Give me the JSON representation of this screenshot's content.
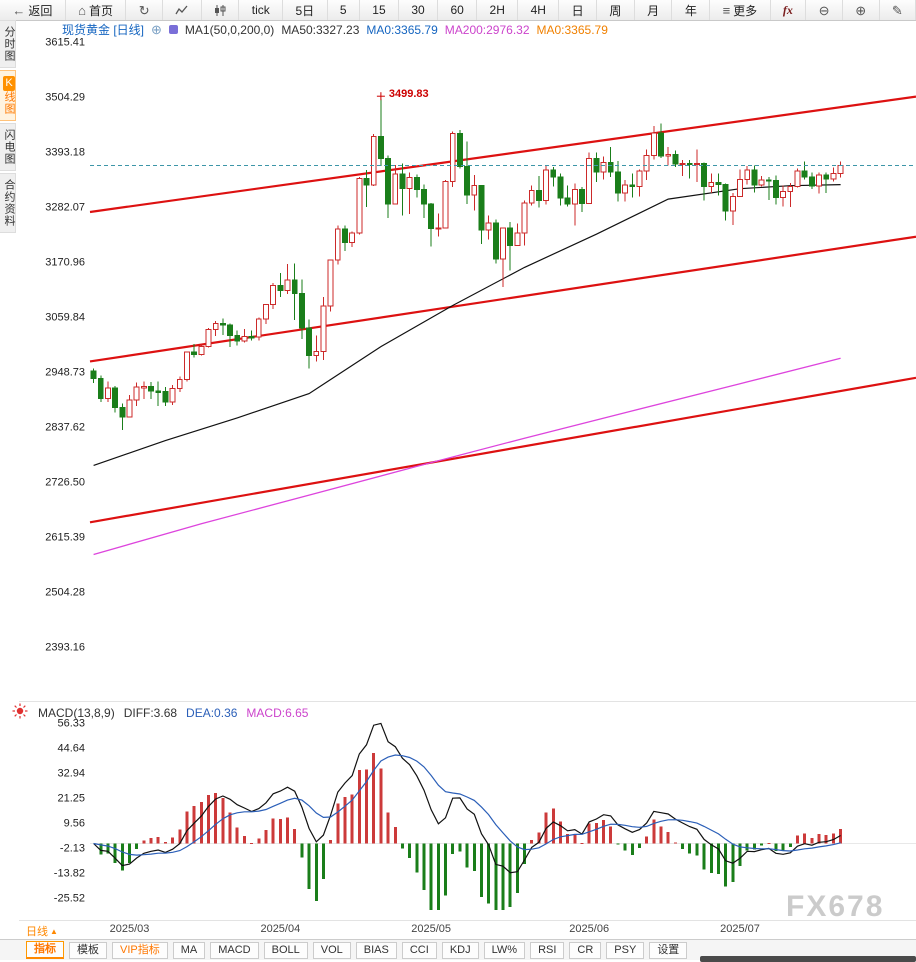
{
  "topbar": {
    "items": [
      {
        "name": "back",
        "icon": "back-arrow",
        "label": "返回"
      },
      {
        "name": "home",
        "icon": "home",
        "label": "首页"
      },
      {
        "name": "refresh",
        "icon": "refresh",
        "label": ""
      },
      {
        "name": "line-chart",
        "icon": "line-chart",
        "label": ""
      },
      {
        "name": "candle-chart",
        "icon": "candle-chart",
        "label": ""
      },
      {
        "name": "tick",
        "label": "tick"
      },
      {
        "name": "5d",
        "label": "5日"
      },
      {
        "name": "5",
        "label": "5"
      },
      {
        "name": "15",
        "label": "15"
      },
      {
        "name": "30",
        "label": "30"
      },
      {
        "name": "60",
        "label": "60"
      },
      {
        "name": "2h",
        "label": "2H"
      },
      {
        "name": "4h",
        "label": "4H"
      },
      {
        "name": "day",
        "label": "日"
      },
      {
        "name": "week",
        "label": "周"
      },
      {
        "name": "month",
        "label": "月"
      },
      {
        "name": "year",
        "label": "年"
      },
      {
        "name": "more",
        "icon": "menu",
        "label": "更多"
      },
      {
        "name": "fx",
        "label": "fx"
      },
      {
        "name": "zoom-out",
        "icon": "zoom-out",
        "label": ""
      },
      {
        "name": "zoom-in",
        "icon": "zoom-in",
        "label": ""
      },
      {
        "name": "draw",
        "icon": "pencil",
        "label": ""
      }
    ]
  },
  "sidebar": {
    "items": [
      {
        "label": "分时图",
        "selected": false
      },
      {
        "label": "K线图",
        "selected": true
      },
      {
        "label": "闪电图",
        "selected": false
      },
      {
        "label": "合约资料",
        "selected": false
      }
    ]
  },
  "chart_header": {
    "segments": [
      {
        "name": "symbol-period",
        "text": "现货黄金 [日线]",
        "color": "#1565c0"
      },
      {
        "name": "ma-params",
        "text": "MA1(50,0,200,0)",
        "color": "#333333"
      },
      {
        "name": "ma50-value",
        "text": "MA50:3327.23",
        "color": "#333333"
      },
      {
        "name": "ma0-value",
        "text": "MA0:3365.79",
        "color": "#1565c0"
      },
      {
        "name": "ma200-value",
        "text": "MA200:2976.32",
        "color": "#cc44cc"
      },
      {
        "name": "ma0-value-2",
        "text": "MA0:3365.79",
        "color": "#f08000"
      }
    ]
  },
  "macd_header": {
    "segments": [
      {
        "name": "macd-params",
        "text": "MACD(13,8,9)",
        "color": "#333333"
      },
      {
        "name": "diff-value",
        "text": "DIFF:3.68",
        "color": "#333333"
      },
      {
        "name": "dea-value",
        "text": "DEA:0.36",
        "color": "#2b5fb8"
      },
      {
        "name": "macd-value",
        "text": "MACD:6.65",
        "color": "#cc44cc"
      }
    ]
  },
  "bottombar": {
    "period_label": "日线",
    "tabs": [
      {
        "label": "指标",
        "style": "active"
      },
      {
        "label": "模板",
        "style": "plain"
      },
      {
        "label": "VIP指标",
        "style": "vip"
      },
      {
        "label": "MA",
        "style": "boxed"
      },
      {
        "label": "MACD",
        "style": "boxed"
      },
      {
        "label": "BOLL",
        "style": "boxed"
      },
      {
        "label": "VOL",
        "style": "boxed"
      },
      {
        "label": "BIAS",
        "style": "boxed"
      },
      {
        "label": "CCI",
        "style": "boxed"
      },
      {
        "label": "KDJ",
        "style": "boxed"
      },
      {
        "label": "LW%",
        "style": "boxed"
      },
      {
        "label": "RSI",
        "style": "boxed"
      },
      {
        "label": "CR",
        "style": "boxed"
      },
      {
        "label": "PSY",
        "style": "boxed"
      },
      {
        "label": "设置",
        "style": "boxed"
      }
    ]
  },
  "watermark": "FX678",
  "chart_data": {
    "type": "candlestick",
    "symbol": "现货黄金",
    "period": "日线",
    "main": {
      "y_ticks": [
        3615.41,
        3504.29,
        3393.18,
        3282.07,
        3170.96,
        3059.84,
        2948.73,
        2837.62,
        2726.5,
        2615.39,
        2504.28,
        2393.16
      ],
      "candles": [
        [
          2951,
          2956,
          2926,
          2936
        ],
        [
          2936,
          2942,
          2888,
          2895
        ],
        [
          2895,
          2930,
          2888,
          2916
        ],
        [
          2916,
          2920,
          2867,
          2877
        ],
        [
          2877,
          2885,
          2832,
          2858
        ],
        [
          2858,
          2902,
          2857,
          2892
        ],
        [
          2892,
          2927,
          2880,
          2918
        ],
        [
          2918,
          2929,
          2894,
          2919
        ],
        [
          2919,
          2928,
          2894,
          2910
        ],
        [
          2910,
          2930,
          2880,
          2909
        ],
        [
          2909,
          2918,
          2880,
          2888
        ],
        [
          2888,
          2922,
          2882,
          2915
        ],
        [
          2915,
          2940,
          2908,
          2934
        ],
        [
          2934,
          2990,
          2930,
          2989
        ],
        [
          2989,
          3005,
          2978,
          2984
        ],
        [
          2984,
          3004,
          2982,
          3000
        ],
        [
          3000,
          3038,
          2998,
          3035
        ],
        [
          3035,
          3052,
          3021,
          3047
        ],
        [
          3047,
          3057,
          3023,
          3044
        ],
        [
          3044,
          3047,
          2999,
          3022
        ],
        [
          3022,
          3033,
          3002,
          3011
        ],
        [
          3011,
          3036,
          3008,
          3020
        ],
        [
          3020,
          3033,
          3012,
          3019
        ],
        [
          3019,
          3059,
          3012,
          3056
        ],
        [
          3056,
          3086,
          3046,
          3085
        ],
        [
          3085,
          3128,
          3076,
          3123
        ],
        [
          3123,
          3149,
          3100,
          3113
        ],
        [
          3113,
          3167,
          3106,
          3135
        ],
        [
          3135,
          3168,
          3054,
          3107
        ],
        [
          3107,
          3136,
          3015,
          3038
        ],
        [
          3038,
          3055,
          2956,
          2982
        ],
        [
          2982,
          3022,
          2970,
          2990
        ],
        [
          2990,
          3100,
          2973,
          3082
        ],
        [
          3082,
          3176,
          3071,
          3175
        ],
        [
          3175,
          3245,
          3166,
          3238
        ],
        [
          3238,
          3245,
          3193,
          3210
        ],
        [
          3210,
          3233,
          3201,
          3230
        ],
        [
          3230,
          3343,
          3226,
          3340
        ],
        [
          3340,
          3357,
          3282,
          3327
        ],
        [
          3327,
          3430,
          3324,
          3424
        ],
        [
          3424,
          3499.83,
          3365,
          3380
        ],
        [
          3380,
          3386,
          3260,
          3288
        ],
        [
          3288,
          3367,
          3287,
          3349
        ],
        [
          3349,
          3370,
          3265,
          3319
        ],
        [
          3319,
          3352,
          3268,
          3342
        ],
        [
          3342,
          3348,
          3301,
          3317
        ],
        [
          3317,
          3328,
          3260,
          3288
        ],
        [
          3288,
          3290,
          3202,
          3239
        ],
        [
          3239,
          3269,
          3222,
          3240
        ],
        [
          3240,
          3337,
          3239,
          3334
        ],
        [
          3334,
          3435,
          3322,
          3431
        ],
        [
          3431,
          3438,
          3360,
          3364
        ],
        [
          3364,
          3414,
          3288,
          3306
        ],
        [
          3306,
          3347,
          3275,
          3325
        ],
        [
          3325,
          3326,
          3207,
          3236
        ],
        [
          3236,
          3265,
          3216,
          3250
        ],
        [
          3250,
          3257,
          3168,
          3177
        ],
        [
          3177,
          3240,
          3120,
          3240
        ],
        [
          3240,
          3252,
          3154,
          3204
        ],
        [
          3204,
          3249,
          3204,
          3230
        ],
        [
          3230,
          3295,
          3204,
          3290
        ],
        [
          3290,
          3325,
          3285,
          3315
        ],
        [
          3315,
          3345,
          3281,
          3295
        ],
        [
          3295,
          3366,
          3287,
          3357
        ],
        [
          3357,
          3363,
          3323,
          3343
        ],
        [
          3343,
          3350,
          3285,
          3300
        ],
        [
          3300,
          3325,
          3283,
          3288
        ],
        [
          3288,
          3330,
          3245,
          3317
        ],
        [
          3317,
          3322,
          3272,
          3289
        ],
        [
          3289,
          3392,
          3289,
          3380
        ],
        [
          3380,
          3392,
          3333,
          3353
        ],
        [
          3353,
          3384,
          3338,
          3372
        ],
        [
          3372,
          3403,
          3343,
          3353
        ],
        [
          3353,
          3375,
          3293,
          3310
        ],
        [
          3310,
          3337,
          3293,
          3326
        ],
        [
          3326,
          3350,
          3301,
          3323
        ],
        [
          3323,
          3358,
          3303,
          3355
        ],
        [
          3355,
          3398,
          3337,
          3386
        ],
        [
          3386,
          3446,
          3378,
          3432
        ],
        [
          3432,
          3451,
          3381,
          3385
        ],
        [
          3385,
          3403,
          3366,
          3388
        ],
        [
          3388,
          3396,
          3363,
          3369
        ],
        [
          3369,
          3377,
          3345,
          3370
        ],
        [
          3370,
          3377,
          3340,
          3368
        ],
        [
          3368,
          3398,
          3333,
          3370
        ],
        [
          3370,
          3372,
          3295,
          3323
        ],
        [
          3323,
          3350,
          3310,
          3332
        ],
        [
          3332,
          3350,
          3305,
          3328
        ],
        [
          3328,
          3330,
          3255,
          3274
        ],
        [
          3274,
          3310,
          3246,
          3303
        ],
        [
          3303,
          3358,
          3302,
          3338
        ],
        [
          3338,
          3365,
          3328,
          3357
        ],
        [
          3357,
          3366,
          3311,
          3326
        ],
        [
          3326,
          3345,
          3323,
          3337
        ],
        [
          3337,
          3343,
          3296,
          3336
        ],
        [
          3336,
          3346,
          3287,
          3301
        ],
        [
          3301,
          3325,
          3283,
          3313
        ],
        [
          3313,
          3331,
          3282,
          3323
        ],
        [
          3323,
          3360,
          3321,
          3355
        ],
        [
          3355,
          3374,
          3338,
          3343
        ],
        [
          3343,
          3352,
          3318,
          3324
        ],
        [
          3324,
          3352,
          3309,
          3347
        ],
        [
          3347,
          3352,
          3310,
          3339
        ],
        [
          3339,
          3362,
          3334,
          3350
        ],
        [
          3350,
          3374,
          3342,
          3365.79
        ]
      ],
      "ma50_anchors": [
        [
          0,
          2760
        ],
        [
          10,
          2810
        ],
        [
          20,
          2856
        ],
        [
          30,
          2905
        ],
        [
          40,
          3000
        ],
        [
          50,
          3083
        ],
        [
          60,
          3160
        ],
        [
          70,
          3227
        ],
        [
          80,
          3298
        ],
        [
          90,
          3319
        ],
        [
          97,
          3325
        ],
        [
          104,
          3327.23
        ]
      ],
      "ma200_anchors": [
        [
          0,
          2580
        ],
        [
          15,
          2642
        ],
        [
          30,
          2700
        ],
        [
          45,
          2758
        ],
        [
          60,
          2815
        ],
        [
          75,
          2870
        ],
        [
          90,
          2925
        ],
        [
          104,
          2976.32
        ]
      ],
      "trendlines": [
        {
          "left": 3272,
          "right": 3505
        },
        {
          "left": 2970,
          "right": 3222
        },
        {
          "left": 2645,
          "right": 2937
        }
      ],
      "last_price_line": 3365.79,
      "annotation": {
        "text": "3499.83",
        "index": 40,
        "price": 3499.83
      },
      "colors": {
        "up": "#cc2a2a",
        "down": "#1a7e1a",
        "ma50": "#111111",
        "ma200": "#dd44dd",
        "trend": "#dd1111",
        "last": "#3d96a8"
      }
    },
    "macd": {
      "params": "MACD(13,8,9)",
      "diff": 3.68,
      "dea": 0.36,
      "macd": 6.65,
      "fast": 8,
      "slow": 13,
      "signal": 9,
      "y_ticks": [
        56.33,
        44.64,
        32.94,
        21.25,
        9.56,
        -2.13,
        -13.82,
        -25.52
      ],
      "colors": {
        "pos": "#cc3a3a",
        "neg": "#1a7e1a",
        "diff": "#111111",
        "dea": "#2b5fb8"
      }
    },
    "x_ticks": [
      {
        "label": "2025/03",
        "i": 5
      },
      {
        "label": "2025/04",
        "i": 26
      },
      {
        "label": "2025/05",
        "i": 47
      },
      {
        "label": "2025/06",
        "i": 69
      },
      {
        "label": "2025/07",
        "i": 90
      }
    ]
  }
}
